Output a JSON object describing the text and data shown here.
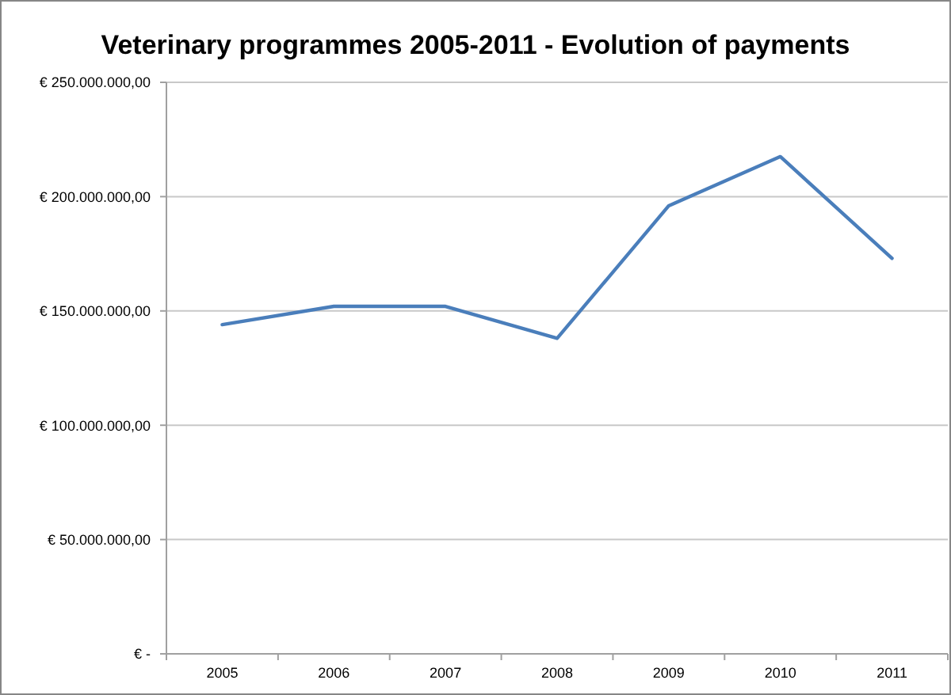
{
  "chart_data": {
    "type": "line",
    "title": "Veterinary programmes 2005-2011 - Evolution of payments",
    "categories": [
      "2005",
      "2006",
      "2007",
      "2008",
      "2009",
      "2010",
      "2011"
    ],
    "series": [
      {
        "color": "#4a7ebb",
        "values": [
          144000000,
          152000000,
          152000000,
          138000000,
          196000000,
          217500000,
          173000000
        ]
      }
    ],
    "ylim": [
      0,
      250000000
    ],
    "yticks": [
      {
        "value": 0,
        "label": "€ -"
      },
      {
        "value": 50000000,
        "label": "€ 50.000.000,00"
      },
      {
        "value": 100000000,
        "label": "€ 100.000.000,00"
      },
      {
        "value": 150000000,
        "label": "€ 150.000.000,00"
      },
      {
        "value": 200000000,
        "label": "€ 200.000.000,00"
      },
      {
        "value": 250000000,
        "label": "€ 250.000.000,00"
      }
    ],
    "grid": "y",
    "marker": "none",
    "line_style": "solid"
  }
}
